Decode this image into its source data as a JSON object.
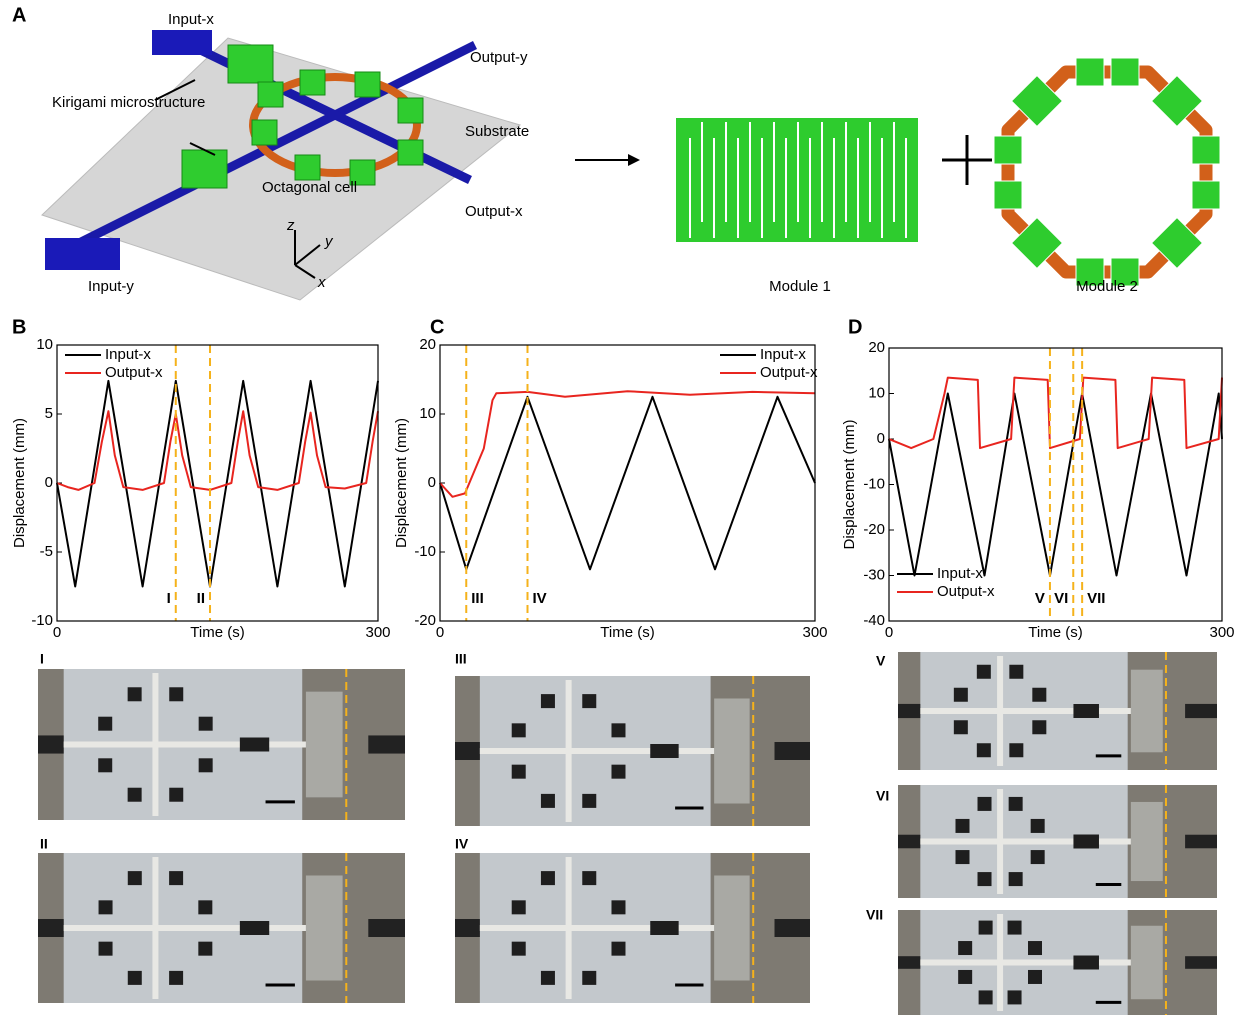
{
  "panel_labels": [
    "A",
    "B",
    "C",
    "D"
  ],
  "schematic": {
    "labels": [
      "Input-x",
      "Output-y",
      "Kirigami microstructure",
      "Substrate",
      "Octagonal cell",
      "Output-x",
      "Input-y",
      "z",
      "y",
      "x"
    ]
  },
  "modules": [
    "Module 1",
    "Module 2"
  ],
  "photo_labels": [
    "I",
    "II",
    "III",
    "IV",
    "V",
    "VI",
    "VII"
  ],
  "chart_data": [
    {
      "type": "line",
      "x_label": "Time (s)",
      "y_label": "Displacement (mm)",
      "xlim": [
        0,
        300
      ],
      "xticks": [
        0,
        300
      ],
      "ylim": [
        -10,
        10
      ],
      "yticks": [
        -10,
        -5,
        0,
        5,
        10
      ],
      "legend": "upper left",
      "series": [
        {
          "name": "Input-x",
          "color": "#000000",
          "x": [
            0,
            17,
            48,
            80,
            111,
            143,
            174,
            206,
            237,
            269,
            300
          ],
          "values": [
            0,
            -7.5,
            7.4,
            -7.5,
            7.4,
            -7.5,
            7.4,
            -7.5,
            7.4,
            -7.5,
            7.4
          ]
        },
        {
          "name": "Output-x",
          "color": "#e8251f",
          "x": [
            0,
            10,
            20,
            35,
            42,
            48,
            54,
            62,
            80,
            100,
            106,
            111,
            117,
            125,
            143,
            163,
            169,
            174,
            180,
            188,
            206,
            226,
            232,
            237,
            243,
            251,
            269,
            289,
            295,
            300
          ],
          "values": [
            0,
            -0.3,
            -0.5,
            0,
            3,
            5.2,
            2,
            -0.3,
            -0.5,
            0,
            3,
            5,
            2,
            -0.3,
            -0.5,
            0,
            3,
            5.2,
            2,
            -0.3,
            -0.5,
            0,
            3,
            5.1,
            2,
            -0.3,
            -0.4,
            0,
            3,
            5.2
          ]
        }
      ],
      "markers": [
        {
          "x": 111,
          "label": "I"
        },
        {
          "x": 143,
          "label": "II"
        }
      ],
      "marker_color": "#f5b21b"
    },
    {
      "type": "line",
      "x_label": "Time (s)",
      "y_label": "Displacement (mm)",
      "xlim": [
        0,
        300
      ],
      "xticks": [
        0,
        300
      ],
      "ylim": [
        -20,
        20
      ],
      "yticks": [
        -20,
        -10,
        0,
        10,
        20
      ],
      "legend": "upper right",
      "series": [
        {
          "name": "Input-x",
          "color": "#000000",
          "x": [
            0,
            21,
            70,
            120,
            170,
            220,
            270,
            300
          ],
          "values": [
            0,
            -12.5,
            12.5,
            -12.5,
            12.5,
            -12.5,
            12.5,
            0
          ]
        },
        {
          "name": "Output-x",
          "color": "#e8251f",
          "x": [
            0,
            10,
            20,
            35,
            42,
            45,
            70,
            100,
            150,
            200,
            250,
            300
          ],
          "values": [
            0,
            -2,
            -1.5,
            5,
            12,
            13,
            13.2,
            12.5,
            13.3,
            12.8,
            13.2,
            13
          ]
        }
      ],
      "markers": [
        {
          "x": 21,
          "label": "III"
        },
        {
          "x": 70,
          "label": "IV"
        }
      ],
      "marker_color": "#f5b21b"
    },
    {
      "type": "line",
      "x_label": "Time (s)",
      "y_label": "Displacement (mm)",
      "xlim": [
        0,
        300
      ],
      "xticks": [
        0,
        300
      ],
      "ylim": [
        -40,
        20
      ],
      "yticks": [
        -40,
        -30,
        -20,
        -10,
        0,
        10,
        20
      ],
      "legend": "lower left",
      "series": [
        {
          "name": "Input-x",
          "color": "#000000",
          "x": [
            0,
            23,
            53,
            86,
            113,
            145,
            174,
            205,
            236,
            268,
            297,
            300
          ],
          "values": [
            0,
            -30,
            10,
            -30,
            10,
            -30,
            10,
            -30,
            10,
            -30,
            10,
            0
          ]
        },
        {
          "name": "Output-x",
          "color": "#e8251f",
          "x": [
            0,
            20,
            40,
            50,
            53,
            80,
            82,
            110,
            113,
            143,
            145,
            172,
            175,
            204,
            206,
            234,
            237,
            266,
            268,
            297,
            300
          ],
          "values": [
            0,
            -2,
            0,
            10,
            13.5,
            13,
            -2,
            0,
            13.5,
            13,
            -2,
            0,
            13.5,
            13,
            -2,
            0,
            13.5,
            13,
            -2,
            0,
            13.5
          ]
        }
      ],
      "markers": [
        {
          "x": 145,
          "label": "V"
        },
        {
          "x": 166,
          "label": "VI"
        },
        {
          "x": 174,
          "label": "VII"
        }
      ],
      "marker_color": "#f5b21b"
    }
  ]
}
